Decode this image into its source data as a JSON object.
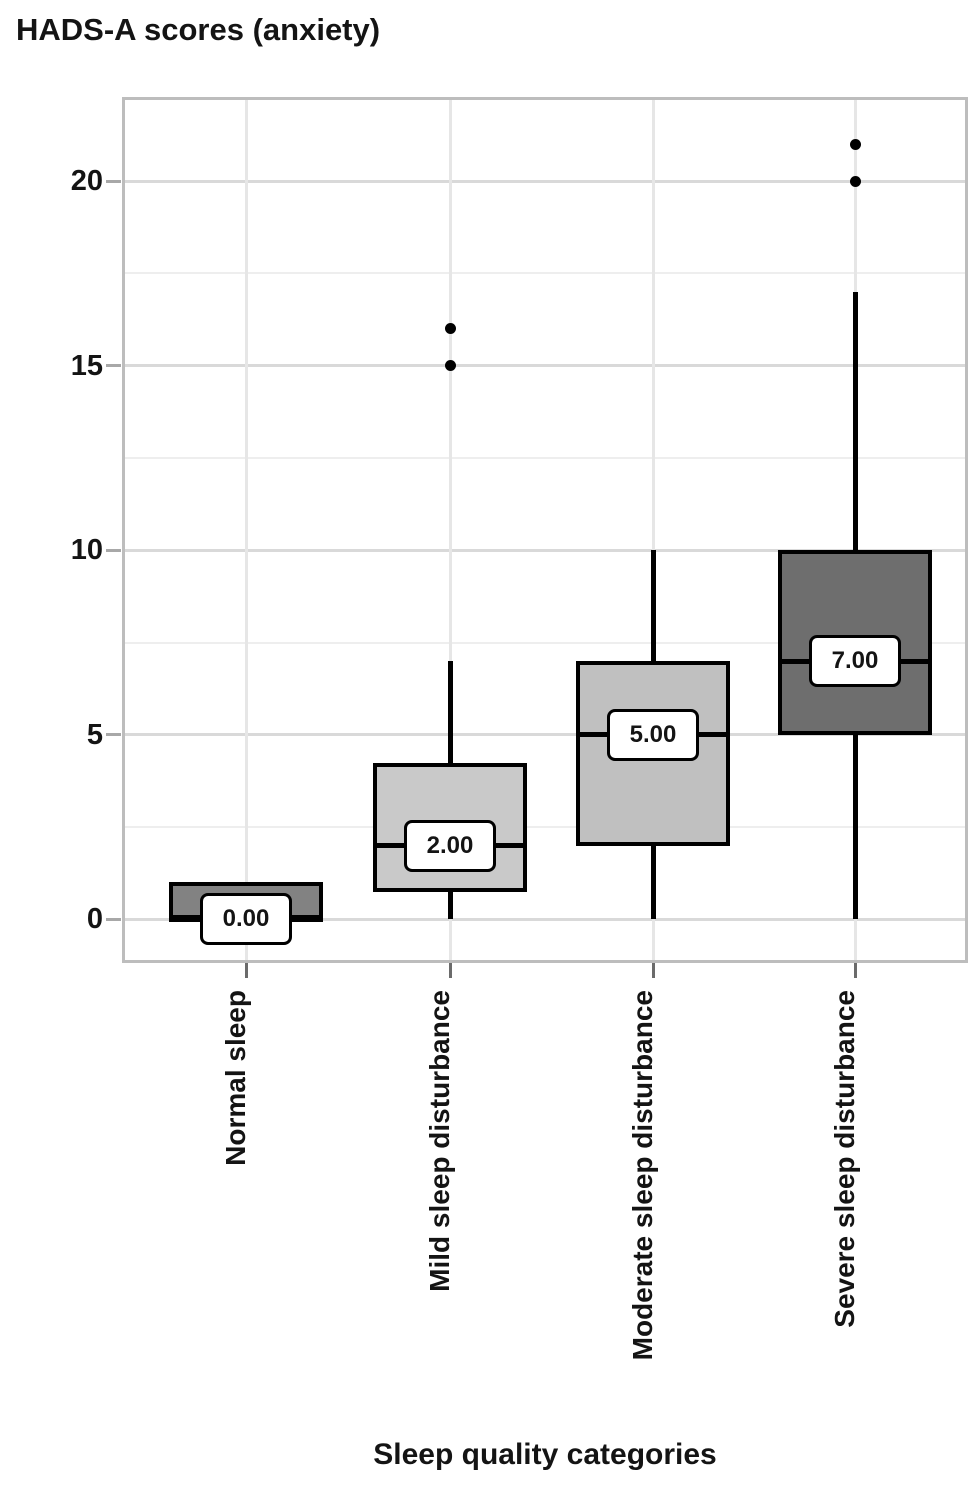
{
  "title": "HADS-A scores (anxiety)",
  "x_axis_title": "Sleep quality categories",
  "colors": {
    "frame": "#bdbdbd",
    "major_grid": "#d9d9d9",
    "minor_grid": "#eeeeee",
    "vertical_grid": "#e6e6e6",
    "box_border": "#000000",
    "median_label_bg": "#ffffff",
    "text": "#141414",
    "dark_box_fill": "#7e7e7e",
    "light_box_fill": "#c9c9c9"
  },
  "chart_data": {
    "type": "box",
    "title": "HADS-A scores (anxiety)",
    "xlabel": "Sleep quality categories",
    "ylabel": "",
    "grid": true,
    "legend": "none",
    "ylim": [
      -1.1,
      22.2
    ],
    "y_ticks": [
      0,
      5,
      10,
      15,
      20
    ],
    "y_tick_labels": [
      "0",
      "5",
      "10",
      "15",
      "20"
    ],
    "minor_gridlines": [
      2.5,
      7.5,
      12.5,
      17.5
    ],
    "categories": [
      "Normal sleep",
      "Mild sleep disturbance",
      "Moderate sleep disturbance",
      "Severe sleep disturbance"
    ],
    "series": [
      {
        "name": "Normal sleep",
        "q1": 0,
        "median": 0,
        "q3": 1,
        "whisker_low": null,
        "whisker_high": null,
        "outliers": [],
        "median_label": "0.00",
        "fill": "#828282"
      },
      {
        "name": "Mild sleep disturbance",
        "q1": 0.75,
        "median": 2,
        "q3": 4.25,
        "whisker_low": 0,
        "whisker_high": 7,
        "outliers": [
          15,
          16
        ],
        "median_label": "2.00",
        "fill": "#c9c9c9"
      },
      {
        "name": "Moderate sleep disturbance",
        "q1": 2,
        "median": 5,
        "q3": 7,
        "whisker_low": 0,
        "whisker_high": 10,
        "outliers": [],
        "median_label": "5.00",
        "fill": "#c0c0c0"
      },
      {
        "name": "Severe sleep disturbance",
        "q1": 5,
        "median": 7,
        "q3": 10,
        "whisker_low": 0,
        "whisker_high": 17,
        "outliers": [
          20,
          21
        ],
        "median_label": "7.00",
        "fill": "#6e6e6e"
      }
    ]
  }
}
